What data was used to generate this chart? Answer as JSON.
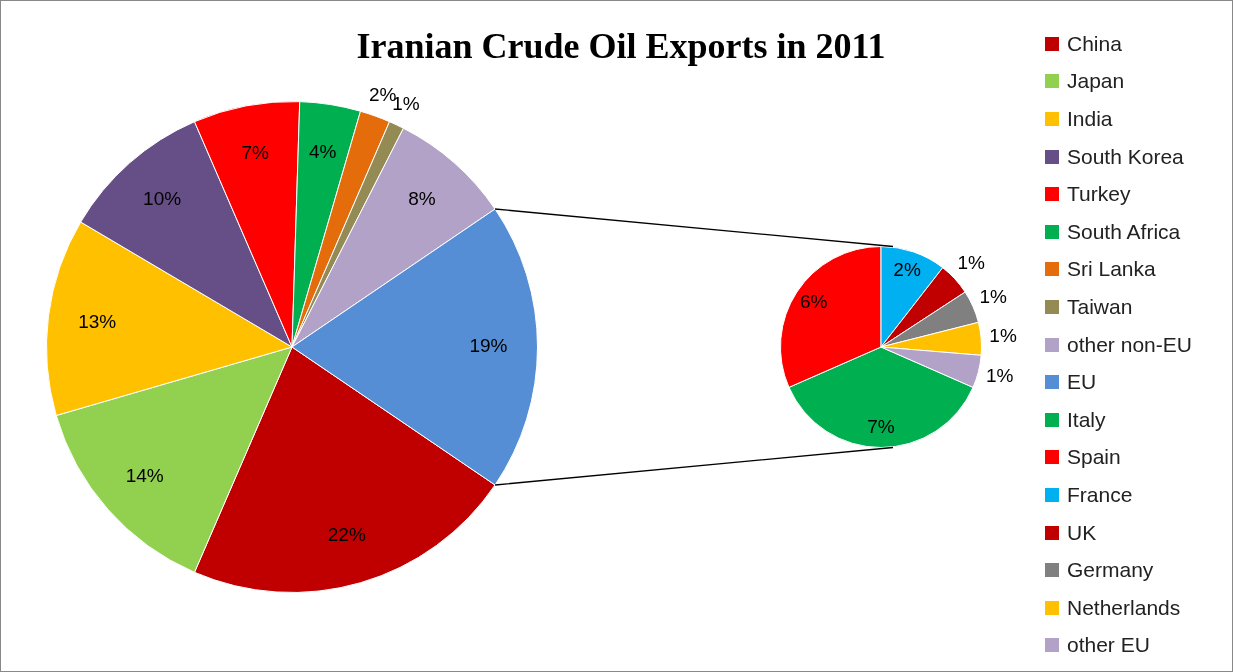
{
  "chart_data": [
    {
      "type": "pie",
      "title": "Iranian Crude Oil Exports in 2011",
      "legend": "right",
      "categories": [
        "China",
        "Japan",
        "India",
        "South Korea",
        "Turkey",
        "South Africa",
        "Sri Lanka",
        "Taiwan",
        "other non-EU",
        "EU"
      ],
      "values": [
        22,
        14,
        13,
        10,
        7,
        4,
        2,
        1,
        8,
        19
      ],
      "value_labels": [
        "22%",
        "14%",
        "13%",
        "10%",
        "7%",
        "4%",
        "2%",
        "1%",
        "8%",
        "19%"
      ],
      "colors": [
        "#c00000",
        "#92d050",
        "#ffc000",
        "#664f86",
        "#ff0000",
        "#00b050",
        "#e46c0a",
        "#948a54",
        "#b2a2c7",
        "#558ed5"
      ]
    },
    {
      "type": "pie",
      "legend": "right",
      "categories": [
        "Italy",
        "Spain",
        "France",
        "UK",
        "Germany",
        "Netherlands",
        "other EU"
      ],
      "values": [
        7,
        6,
        2,
        1,
        1,
        1,
        1
      ],
      "value_labels": [
        "7%",
        "6%",
        "2%",
        "1%",
        "1%",
        "1%",
        "1%"
      ],
      "colors": [
        "#00b050",
        "#ff0000",
        "#00b0f0",
        "#c00000",
        "#808080",
        "#ffc000",
        "#b2a2c7"
      ]
    }
  ]
}
